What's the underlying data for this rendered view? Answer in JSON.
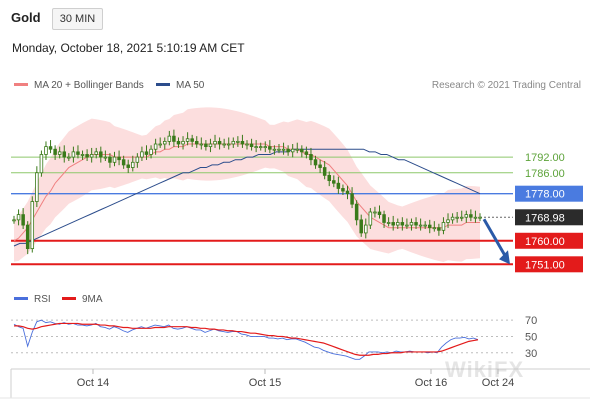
{
  "header": {
    "title": "Gold",
    "timeframe": "30 MIN",
    "datetime": "Monday, October 18, 2021 5:10:19 AM CET"
  },
  "legend": {
    "ma20_label": "MA 20 + Bollinger Bands",
    "ma50_label": "MA 50",
    "credit": "Research © 2021 Trading Central"
  },
  "rsi_legend": {
    "rsi_label": "RSI",
    "ma_label": "9MA"
  },
  "watermark": "WikiFX",
  "colors": {
    "ma20": "#f08080",
    "ma50": "#2c4d8c",
    "bollinger": "#fbd3d3",
    "resistance_green": "#8dc86b",
    "pivot_blue": "#4a7be0",
    "support_red": "#e31b1b",
    "candle": "#3a7a1a",
    "arrow": "#2a5aa8",
    "rsi": "#4a6fdc",
    "rsi_ma": "#e31b1b"
  },
  "chart_data": [
    {
      "type": "candlestick",
      "title": "Gold",
      "x_ticks": [
        "Oct 14",
        "Oct 15",
        "Oct 16",
        "Oct 24"
      ],
      "y_range": [
        1745,
        1810
      ],
      "levels": [
        {
          "label": "1792.00",
          "value": 1792.0,
          "kind": "resistance"
        },
        {
          "label": "1786.00",
          "value": 1786.0,
          "kind": "resistance"
        },
        {
          "label": "1778.00",
          "value": 1778.0,
          "kind": "pivot"
        },
        {
          "label": "1768.98",
          "value": 1768.98,
          "kind": "last"
        },
        {
          "label": "1760.00",
          "value": 1760.0,
          "kind": "support"
        },
        {
          "label": "1751.00",
          "value": 1751.0,
          "kind": "support"
        }
      ],
      "close": [
        1768,
        1770,
        1766,
        1757,
        1775,
        1786,
        1793,
        1796,
        1795,
        1793,
        1794,
        1792,
        1792,
        1794,
        1793,
        1793,
        1792,
        1793,
        1794,
        1792,
        1792,
        1790,
        1792,
        1791,
        1789,
        1788,
        1790,
        1792,
        1794,
        1793,
        1795,
        1797,
        1797,
        1798,
        1800,
        1798,
        1797,
        1798,
        1799,
        1798,
        1797,
        1797,
        1796,
        1797,
        1798,
        1797,
        1797,
        1797,
        1798,
        1798,
        1797,
        1797,
        1796,
        1796,
        1796,
        1796,
        1795,
        1795,
        1795,
        1795,
        1794,
        1795,
        1795,
        1794,
        1793,
        1791,
        1789,
        1788,
        1785,
        1783,
        1782,
        1780,
        1779,
        1778,
        1774,
        1768,
        1763,
        1766,
        1771,
        1771,
        1770,
        1767,
        1767,
        1766,
        1767,
        1766,
        1766,
        1767,
        1766,
        1766,
        1766,
        1765,
        1765,
        1764,
        1767,
        1768,
        1769,
        1769,
        1769,
        1770,
        1769,
        1769,
        1769
      ],
      "ma20": [
        1760,
        1761,
        1763,
        1765,
        1768,
        1771,
        1774,
        1777,
        1779,
        1782,
        1784,
        1786,
        1788,
        1789,
        1790,
        1791,
        1792,
        1793,
        1793,
        1793,
        1793,
        1793,
        1792,
        1792,
        1792,
        1792,
        1792,
        1792,
        1792,
        1792,
        1793,
        1794,
        1794,
        1795,
        1795,
        1796,
        1796,
        1796,
        1797,
        1797,
        1797,
        1797,
        1797,
        1797,
        1797,
        1797,
        1797,
        1797,
        1797,
        1797,
        1797,
        1797,
        1797,
        1797,
        1797,
        1797,
        1796,
        1796,
        1796,
        1796,
        1795,
        1795,
        1795,
        1794,
        1793,
        1793,
        1792,
        1791,
        1790,
        1789,
        1787,
        1785,
        1783,
        1781,
        1778,
        1775,
        1773,
        1771,
        1769,
        1768,
        1767,
        1766,
        1765,
        1765,
        1765,
        1765,
        1765,
        1765,
        1765,
        1765,
        1765,
        1765,
        1765,
        1765,
        1765,
        1766,
        1766,
        1766,
        1766,
        1767,
        1767,
        1767,
        1767
      ],
      "ma50": [
        1758,
        1759,
        1759,
        1760,
        1761,
        1762,
        1763,
        1764,
        1765,
        1766,
        1767,
        1768,
        1769,
        1770,
        1771,
        1772,
        1773,
        1774,
        1775,
        1776,
        1777,
        1778,
        1779,
        1780,
        1781,
        1782,
        1783,
        1784,
        1785,
        1786,
        1786,
        1787,
        1788,
        1788,
        1789,
        1789,
        1790,
        1790,
        1791,
        1791,
        1792,
        1792,
        1793,
        1793,
        1793,
        1794,
        1794,
        1794,
        1795,
        1795,
        1795,
        1795,
        1795,
        1795,
        1795,
        1795,
        1795,
        1795,
        1795,
        1795,
        1795,
        1794,
        1794,
        1793,
        1793,
        1792,
        1791,
        1791,
        1790,
        1789,
        1788,
        1787,
        1786,
        1785,
        1784,
        1783,
        1782,
        1781,
        1780,
        1779,
        1778
      ],
      "projection": {
        "from": 1768.98,
        "to": 1751.0
      }
    },
    {
      "type": "line",
      "title": "RSI",
      "y_ticks": [
        70,
        50,
        30
      ],
      "y_range": [
        15,
        80
      ],
      "series": [
        {
          "name": "RSI",
          "values": [
            65,
            62,
            60,
            38,
            55,
            68,
            70,
            67,
            68,
            66,
            65,
            67,
            65,
            66,
            64,
            64,
            63,
            64,
            66,
            62,
            61,
            59,
            62,
            60,
            57,
            55,
            58,
            60,
            62,
            60,
            62,
            64,
            63,
            62,
            64,
            60,
            59,
            60,
            62,
            60,
            58,
            58,
            55,
            57,
            59,
            57,
            56,
            55,
            56,
            56,
            53,
            52,
            50,
            50,
            50,
            50,
            48,
            48,
            47,
            48,
            46,
            47,
            47,
            45,
            43,
            40,
            37,
            36,
            33,
            31,
            29,
            28,
            27,
            26,
            24,
            22,
            22,
            26,
            31,
            31,
            31,
            30,
            31,
            30,
            32,
            31,
            31,
            32,
            31,
            31,
            31,
            30,
            31,
            30,
            37,
            42,
            46,
            48,
            48,
            49,
            47,
            48,
            46
          ]
        },
        {
          "name": "9MA",
          "values": [
            63,
            63,
            62,
            60,
            59,
            60,
            62,
            63,
            64,
            65,
            66,
            66,
            66,
            66,
            66,
            65,
            65,
            65,
            65,
            64,
            64,
            63,
            63,
            62,
            61,
            61,
            60,
            60,
            60,
            60,
            60,
            61,
            61,
            61,
            62,
            62,
            62,
            62,
            62,
            61,
            61,
            60,
            60,
            59,
            59,
            58,
            58,
            57,
            57,
            56,
            56,
            55,
            54,
            54,
            53,
            52,
            51,
            51,
            50,
            50,
            49,
            48,
            48,
            47,
            46,
            45,
            44,
            43,
            42,
            40,
            38,
            36,
            34,
            32,
            30,
            28,
            27,
            27,
            27,
            28,
            28,
            29,
            29,
            30,
            30,
            30,
            31,
            31,
            31,
            31,
            31,
            31,
            31,
            31,
            32,
            34,
            36,
            38,
            40,
            42,
            44,
            45,
            46
          ]
        }
      ]
    }
  ]
}
